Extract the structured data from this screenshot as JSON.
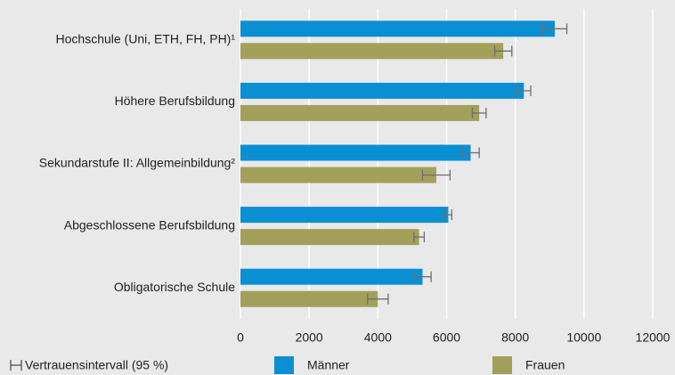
{
  "chart_data": {
    "type": "bar",
    "orientation": "horizontal",
    "categories": [
      "Hochschule (Uni, ETH, FH, PH)¹",
      "Höhere Berufsbildung",
      "Sekundarstufe II: Allgemeinbildung²",
      "Abgeschlossene Berufsbildung",
      "Obligatorische Schule"
    ],
    "series": [
      {
        "name": "Männer",
        "color": "#0a8fd3",
        "values": [
          9150,
          8250,
          6700,
          6050,
          5300
        ],
        "errors": [
          350,
          200,
          250,
          100,
          250
        ]
      },
      {
        "name": "Frauen",
        "color": "#a3a05c",
        "values": [
          7650,
          6950,
          5700,
          5200,
          4000
        ],
        "errors": [
          250,
          200,
          400,
          150,
          300
        ]
      }
    ],
    "xlim": [
      0,
      12000
    ],
    "xticks": [
      0,
      2000,
      4000,
      6000,
      8000,
      10000,
      12000
    ],
    "grid": true,
    "error_color": "#6e6e6e",
    "ci_label": "Vertrauensintervall (95 %)"
  }
}
